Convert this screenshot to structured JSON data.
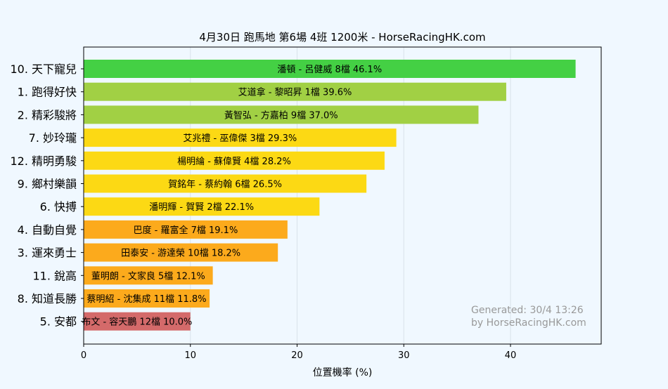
{
  "chart_data": {
    "type": "bar",
    "orientation": "horizontal",
    "title": "4月30日  跑馬地  第6場  4班  1200米 - HorseRacingHK.com",
    "xlabel": "位置機率 (%)",
    "ylabel": "",
    "xlim": [
      0,
      48.5
    ],
    "xticks": [
      0,
      10,
      20,
      30,
      40
    ],
    "grid": "vertical",
    "categories": [
      "10. 天下寵兒",
      "1. 跑得好快",
      "2. 精彩駿將",
      "7. 妙玲瓏",
      "12. 精明勇駿",
      "9. 鄉村樂韻",
      "6. 快搏",
      "4. 自動自覺",
      "3. 運來勇士",
      "11. 銳高",
      "8. 知道長勝",
      "5. 安都"
    ],
    "values": [
      46.1,
      39.6,
      37.0,
      29.3,
      28.2,
      26.5,
      22.1,
      19.1,
      18.2,
      12.1,
      11.8,
      10.0
    ],
    "bar_labels": [
      "潘頓 - 呂健威 8檔  46.1%",
      "艾道拿 - 黎昭昇 1檔  39.6%",
      "黃智弘 - 方嘉柏 9檔  37.0%",
      "艾兆禮 - 巫偉傑 3檔  29.3%",
      "楊明綸 - 蘇偉賢 4檔  28.2%",
      "賀銘年 - 蔡約翰 6檔  26.5%",
      "潘明輝 - 賀賢 2檔  22.1%",
      "巴度 - 羅富全 7檔  19.1%",
      "田泰安 - 游達榮 10檔  18.2%",
      "董明朗 - 文家良 5檔  12.1%",
      "蔡明紹 - 沈集成 11檔  11.8%",
      "布文 - 容天鵬 12檔  10.0%"
    ],
    "colors": [
      "#44d044",
      "#a1d044",
      "#a1d044",
      "#fcd914",
      "#fcd914",
      "#fcd914",
      "#fcd914",
      "#fcaa1c",
      "#fcaa1c",
      "#fcaa1c",
      "#fcaa1c",
      "#d46a6a"
    ],
    "watermark": [
      "Generated: 30/4 13:26",
      "by HorseRacingHK.com"
    ]
  },
  "style": {
    "background": "#f0f8ff",
    "grid_color": "#d9e2ea",
    "axis_color": "#000000",
    "watermark_color": "#999999"
  }
}
